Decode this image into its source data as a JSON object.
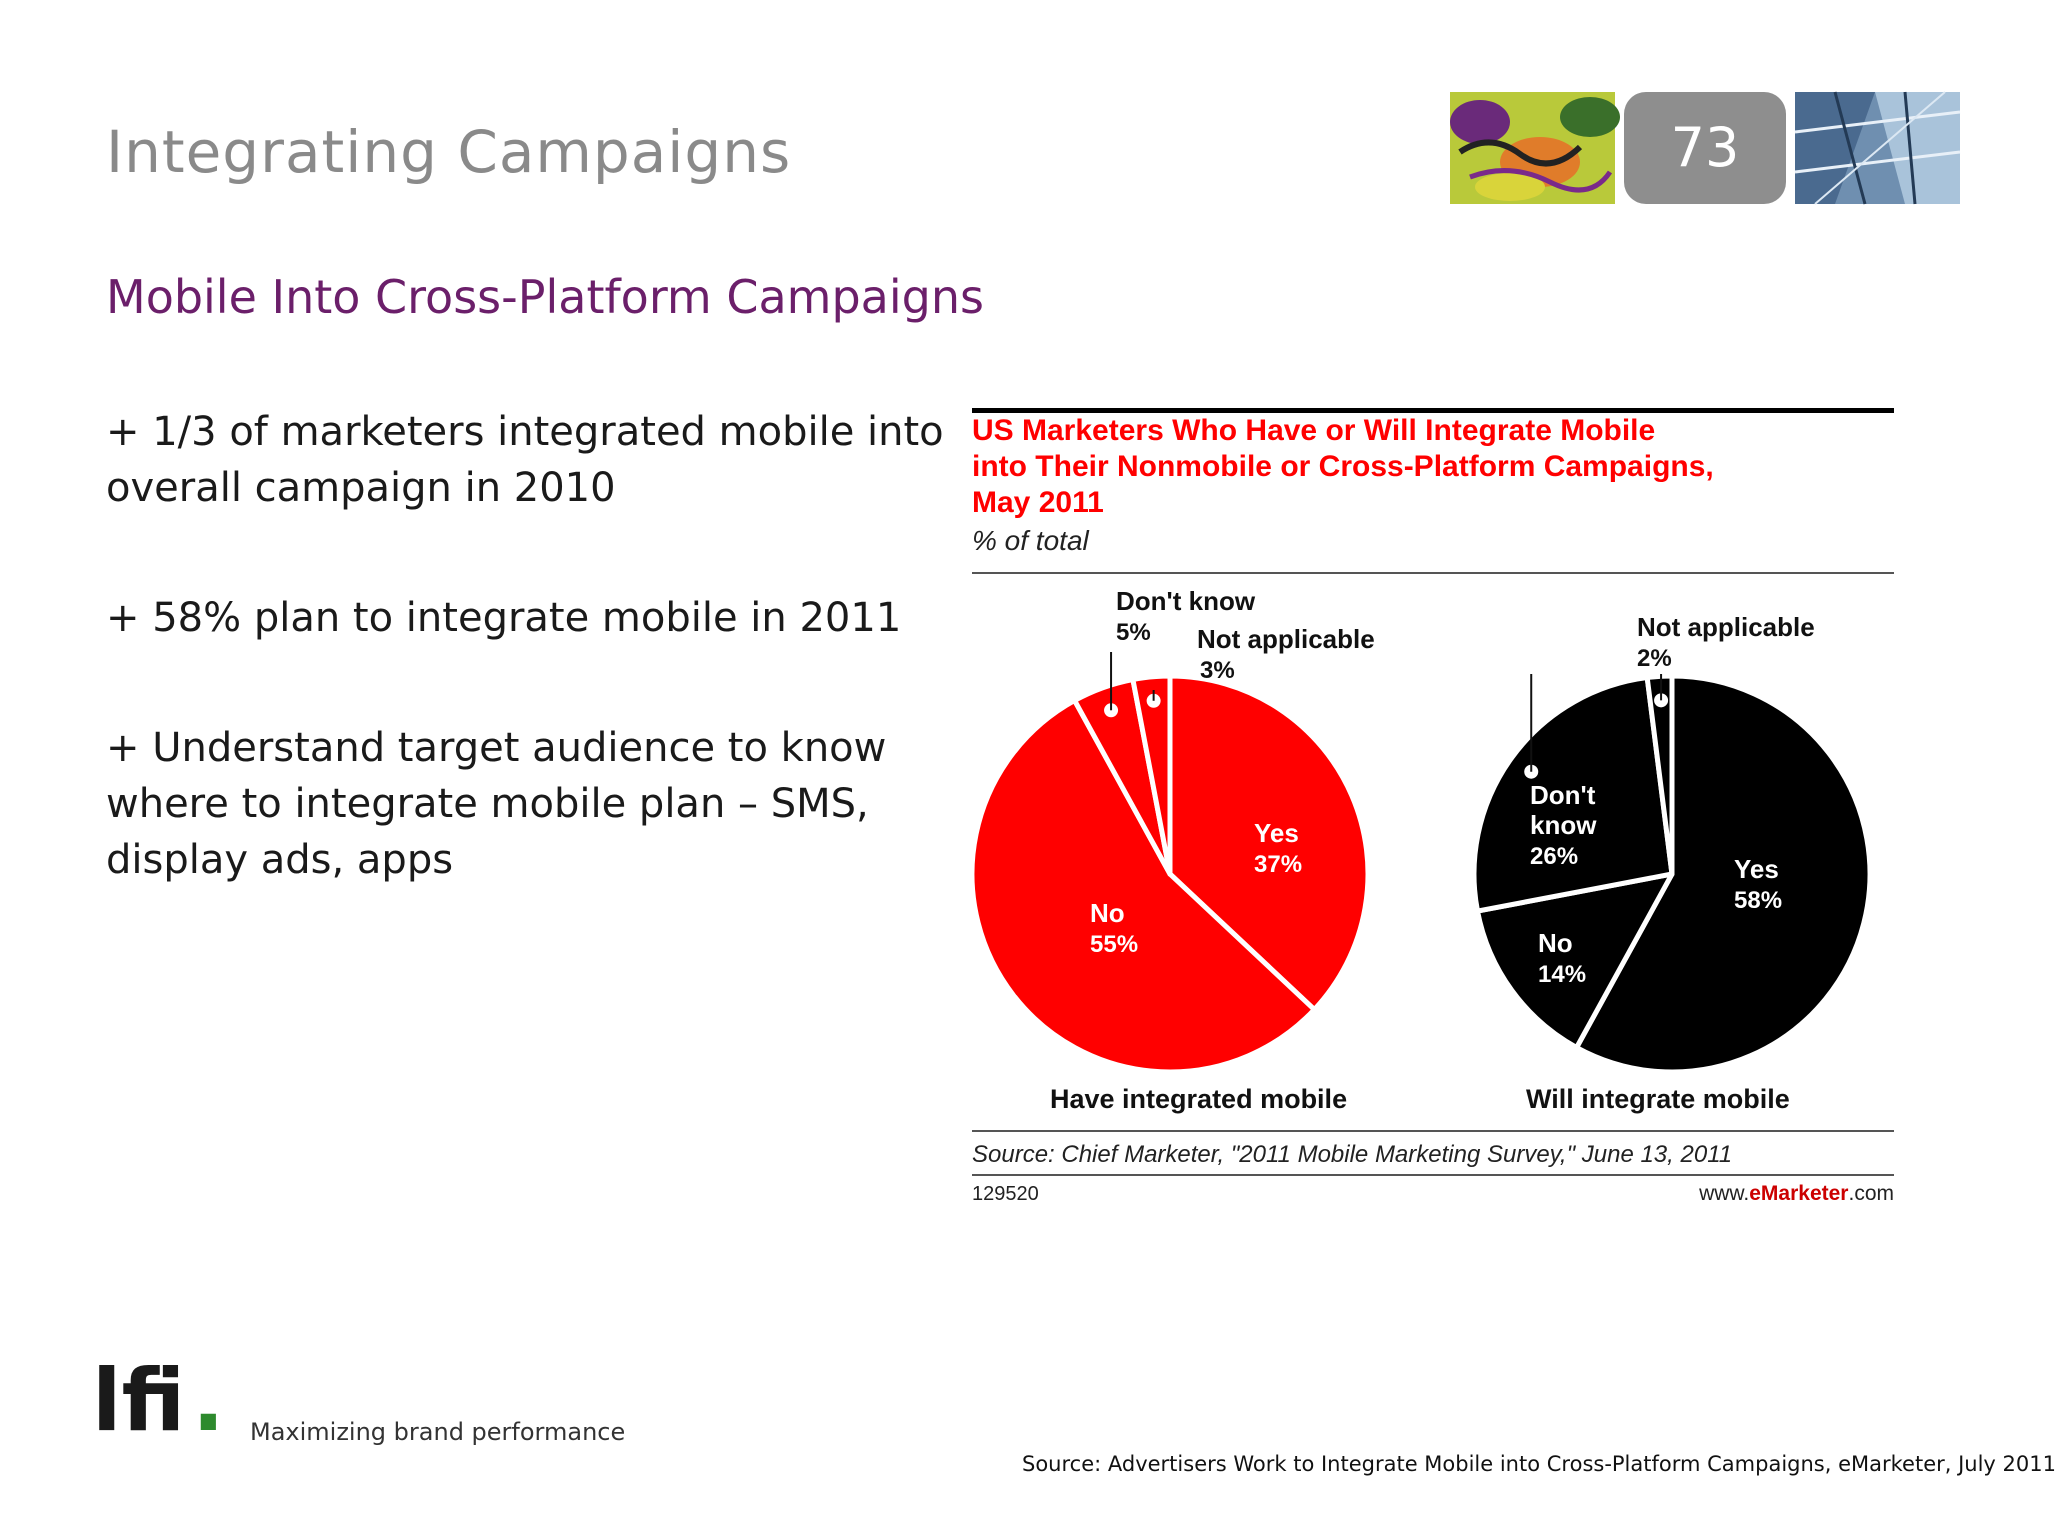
{
  "slide": {
    "title": "Integrating Campaigns",
    "page_number": "73",
    "subtitle": "Mobile Into Cross-Platform Campaigns",
    "bullets": [
      "+ 1/3 of marketers integrated mobile into overall campaign in 2010",
      "+ 58% plan to integrate mobile in 2011",
      "+ Understand target audience to know where to integrate mobile plan – SMS, display ads, apps"
    ]
  },
  "footer": {
    "logo_text": "lfi",
    "logo_dot": ".",
    "tagline": "Maximizing brand performance",
    "source": "Source: Advertisers Work to Integrate Mobile into Cross-Platform Campaigns, eMarketer, July 2011"
  },
  "colors": {
    "title_gray": "#8a8a8a",
    "subtitle_purple": "#6b1f6a",
    "chart_red": "#ff0000",
    "chart_black": "#000000",
    "logo_green": "#2d8a2d"
  },
  "chart_data": [
    {
      "type": "pie",
      "title": "US Marketers Who Have or Will Integrate Mobile into Their Nonmobile or Cross-Platform Campaigns, May 2011",
      "title_lines": [
        "US Marketers Who Have or Will Integrate Mobile",
        "into Their Nonmobile or Cross-Platform Campaigns,",
        "May 2011"
      ],
      "unit_label": "% of total",
      "caption": "Have integrated mobile",
      "color": "#ff0000",
      "slices": [
        {
          "label": "Yes",
          "value": 37,
          "display": "37%"
        },
        {
          "label": "No",
          "value": 55,
          "display": "55%"
        },
        {
          "label": "Don't know",
          "value": 5,
          "display": "5%"
        },
        {
          "label": "Not applicable",
          "value": 3,
          "display": "3%"
        }
      ],
      "source": "Source: Chief Marketer, \"2011 Mobile Marketing Survey,\" June 13, 2011",
      "chart_id": "129520",
      "brand_prefix": "www.",
      "brand_name": "eMarketer",
      "brand_suffix": ".com"
    },
    {
      "type": "pie",
      "caption": "Will integrate mobile",
      "color": "#000000",
      "slices": [
        {
          "label": "Yes",
          "value": 58,
          "display": "58%"
        },
        {
          "label": "No",
          "value": 14,
          "display": "14%"
        },
        {
          "label": "Don't know",
          "value": 26,
          "display": "26%"
        },
        {
          "label": "Not applicable",
          "value": 2,
          "display": "2%"
        }
      ]
    }
  ]
}
